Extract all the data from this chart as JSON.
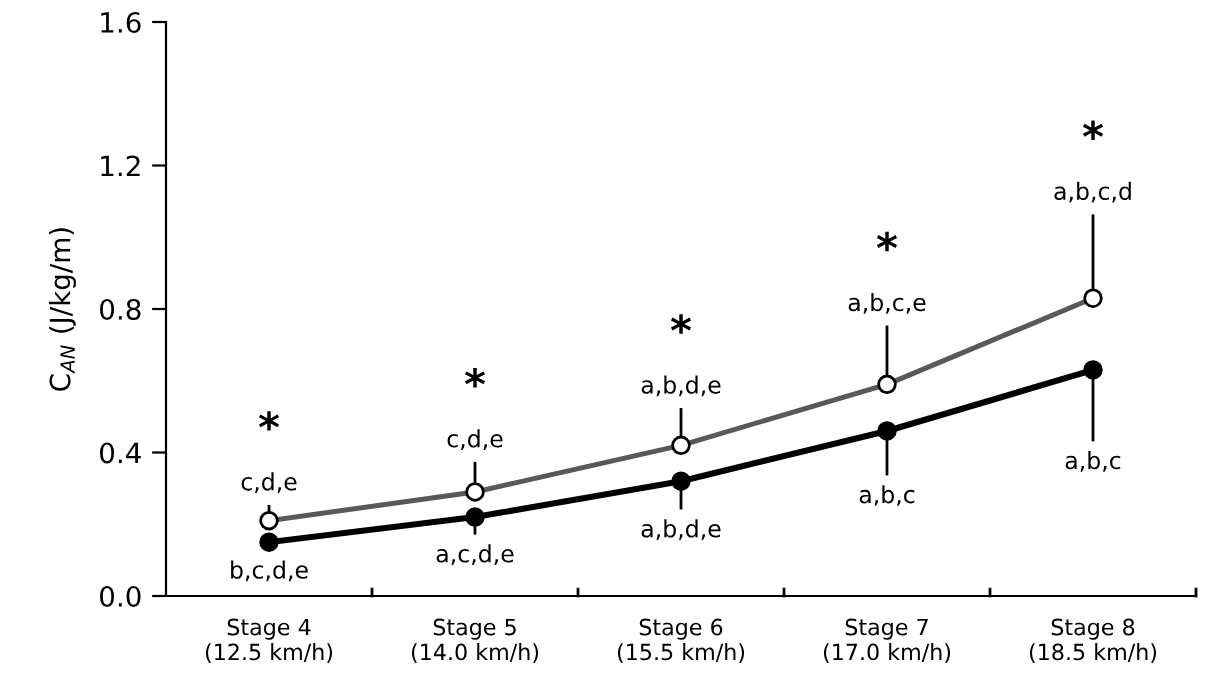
{
  "chart_data": {
    "type": "line",
    "ylabel": "C$_{AN}$ (J/kg/m)",
    "categories": [
      "Stage 4\n(12.5 km/h)",
      "Stage 5\n(14.0 km/h)",
      "Stage 6\n(15.5 km/h)",
      "Stage 7\n(17.0 km/h)",
      "Stage 8\n(18.5 km/h)"
    ],
    "series": [
      {
        "color": "#595959",
        "values": [
          0.21,
          0.29,
          0.42,
          0.59,
          0.83
        ],
        "errors": [
          [
            0.21,
            0.25
          ],
          [
            0.29,
            0.37
          ],
          [
            0.42,
            0.52
          ],
          [
            0.59,
            0.75
          ],
          [
            0.83,
            1.06
          ]
        ]
      },
      {
        "color": "#000000",
        "values": [
          0.15,
          0.22,
          0.32,
          0.46,
          0.63
        ],
        "errors": [
          [
            0.13,
            0.15
          ],
          [
            0.175,
            0.22
          ],
          [
            0.245,
            0.32
          ],
          [
            0.34,
            0.46
          ],
          [
            0.435,
            0.63
          ]
        ]
      }
    ],
    "marker": "circle",
    "line_style": "solid",
    "ylim": [
      0,
      1.6
    ],
    "yticks": [
      {
        "value": 0,
        "label": "0.0"
      },
      0.4,
      0.8,
      1.2,
      1.6
    ],
    "grid": false,
    "legend": false,
    "annotations": [
      "c,d,e",
      "c,d,e",
      "a,b,d,e",
      "a,b,c,e",
      "a,b,c,d",
      "*",
      "*",
      "*",
      "*",
      "*",
      "b,c,d,e",
      "a,c,d,e",
      "a,b,d,e",
      "a,b,c",
      "a,b,c"
    ]
  }
}
